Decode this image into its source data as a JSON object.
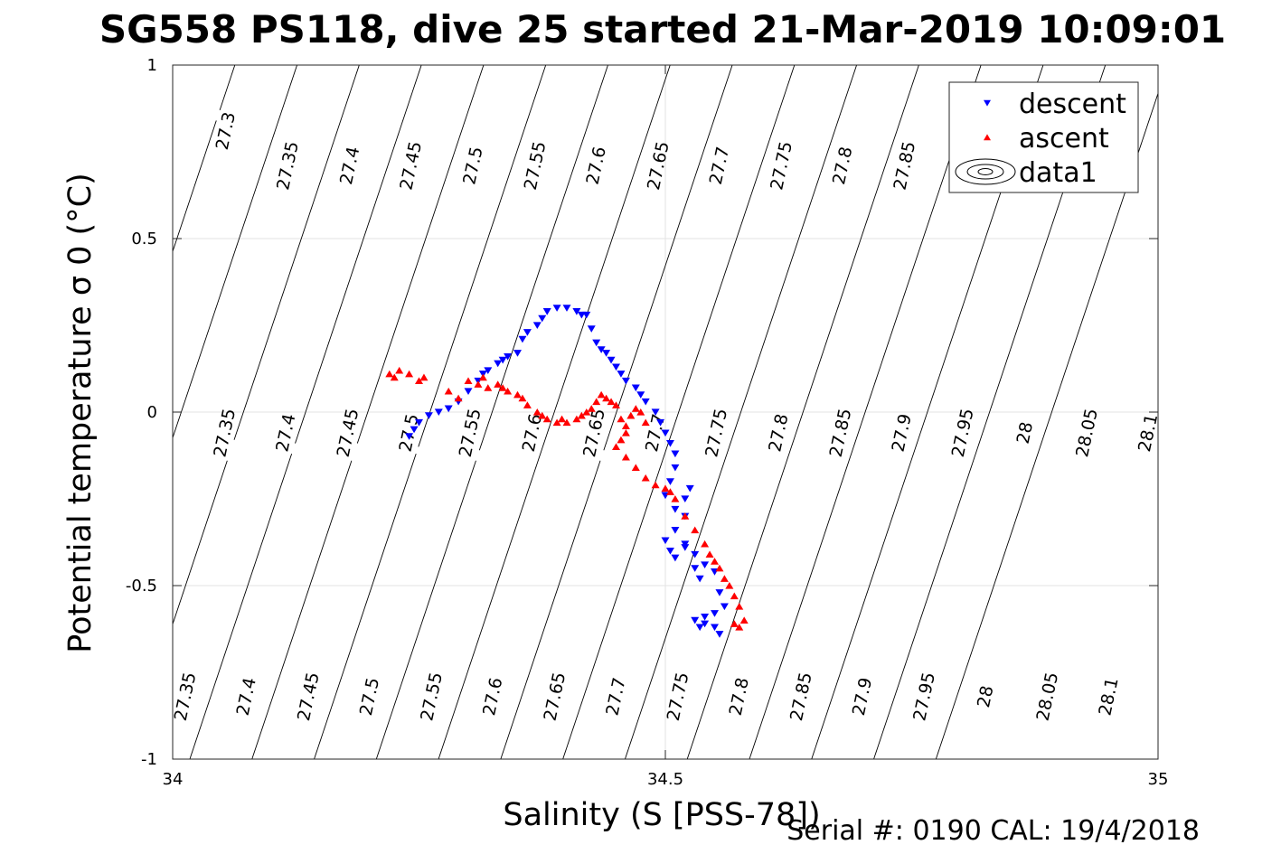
{
  "chart_data": {
    "type": "scatter",
    "title": "SG558 PS118, dive 25 started 21-Mar-2019 10:09:01",
    "xlabel": "Salinity (S [PSS-78])",
    "ylabel": "Potential temperature σ 0 (°C)",
    "footer": "Serial #: 0190  CAL: 19/4/2018",
    "xlim": [
      34,
      35
    ],
    "ylim": [
      -1,
      1
    ],
    "xticks": [
      "34",
      "34.5",
      "35"
    ],
    "yticks": [
      "1",
      "0.5",
      "0",
      "-0.5",
      "-1"
    ],
    "grid": true,
    "legend_position": "top-right",
    "legend": [
      {
        "label": "descent",
        "marker": "triangle-down",
        "color": "#0000ff"
      },
      {
        "label": "ascent",
        "marker": "triangle-up",
        "color": "#ff0000"
      },
      {
        "label": "data1",
        "marker": "contour"
      }
    ],
    "isopycnals": [
      {
        "level": "27.3",
        "x_at_ymax": 34.0
      },
      {
        "level": "27.35",
        "x_at_ymax": 34.0631
      },
      {
        "level": "27.4",
        "x_at_ymax": 34.1262
      },
      {
        "level": "27.45",
        "x_at_ymax": 34.1893
      },
      {
        "level": "27.5",
        "x_at_ymax": 34.2524
      },
      {
        "level": "27.55",
        "x_at_ymax": 34.3155
      },
      {
        "level": "27.6",
        "x_at_ymax": 34.3786
      },
      {
        "level": "27.65",
        "x_at_ymax": 34.4417
      },
      {
        "level": "27.7",
        "x_at_ymax": 34.5048
      },
      {
        "level": "27.75",
        "x_at_ymax": 34.5679
      },
      {
        "level": "27.8",
        "x_at_ymax": 34.631
      },
      {
        "level": "27.85",
        "x_at_ymax": 34.6941
      },
      {
        "level": "27.9",
        "x_at_ymax": 34.7572
      },
      {
        "level": "27.95",
        "x_at_ymax": 34.8203
      },
      {
        "level": "28",
        "x_at_ymax": 34.8834
      },
      {
        "level": "28.05",
        "x_at_ymax": 34.9465
      },
      {
        "level": "28.1",
        "x_at_ymax": 35.0096
      }
    ],
    "contour_labels": [
      {
        "text": "27.3",
        "x": 34.054,
        "y": 0.81
      },
      {
        "text": "27.35",
        "x": 34.117,
        "y": 0.71
      },
      {
        "text": "27.4",
        "x": 34.18,
        "y": 0.71
      },
      {
        "text": "27.45",
        "x": 34.242,
        "y": 0.71
      },
      {
        "text": "27.5",
        "x": 34.305,
        "y": 0.71
      },
      {
        "text": "27.55",
        "x": 34.368,
        "y": 0.71
      },
      {
        "text": "27.6",
        "x": 34.43,
        "y": 0.71
      },
      {
        "text": "27.65",
        "x": 34.493,
        "y": 0.71
      },
      {
        "text": "27.7",
        "x": 34.555,
        "y": 0.71
      },
      {
        "text": "27.75",
        "x": 34.618,
        "y": 0.71
      },
      {
        "text": "27.8",
        "x": 34.68,
        "y": 0.71
      },
      {
        "text": "27.85",
        "x": 34.743,
        "y": 0.71
      },
      {
        "text": "27.35",
        "x": 34.053,
        "y": -0.06
      },
      {
        "text": "27.4",
        "x": 34.115,
        "y": -0.06
      },
      {
        "text": "27.45",
        "x": 34.178,
        "y": -0.06
      },
      {
        "text": "27.5",
        "x": 34.24,
        "y": -0.06
      },
      {
        "text": "27.55",
        "x": 34.302,
        "y": -0.06
      },
      {
        "text": "27.6",
        "x": 34.365,
        "y": -0.06
      },
      {
        "text": "27.65",
        "x": 34.428,
        "y": -0.06
      },
      {
        "text": "27.7",
        "x": 34.49,
        "y": -0.06
      },
      {
        "text": "27.75",
        "x": 34.552,
        "y": -0.06
      },
      {
        "text": "27.8",
        "x": 34.615,
        "y": -0.06
      },
      {
        "text": "27.85",
        "x": 34.678,
        "y": -0.06
      },
      {
        "text": "27.9",
        "x": 34.74,
        "y": -0.06
      },
      {
        "text": "27.95",
        "x": 34.802,
        "y": -0.06
      },
      {
        "text": "28",
        "x": 34.865,
        "y": -0.06
      },
      {
        "text": "28.05",
        "x": 34.928,
        "y": -0.06
      },
      {
        "text": "28.1",
        "x": 34.99,
        "y": -0.06
      },
      {
        "text": "27.35",
        "x": 34.013,
        "y": -0.82
      },
      {
        "text": "27.4",
        "x": 34.075,
        "y": -0.82
      },
      {
        "text": "27.45",
        "x": 34.138,
        "y": -0.82
      },
      {
        "text": "27.5",
        "x": 34.2,
        "y": -0.82
      },
      {
        "text": "27.55",
        "x": 34.263,
        "y": -0.82
      },
      {
        "text": "27.6",
        "x": 34.325,
        "y": -0.82
      },
      {
        "text": "27.65",
        "x": 34.388,
        "y": -0.82
      },
      {
        "text": "27.7",
        "x": 34.45,
        "y": -0.82
      },
      {
        "text": "27.75",
        "x": 34.513,
        "y": -0.82
      },
      {
        "text": "27.8",
        "x": 34.575,
        "y": -0.82
      },
      {
        "text": "27.85",
        "x": 34.638,
        "y": -0.82
      },
      {
        "text": "27.9",
        "x": 34.7,
        "y": -0.82
      },
      {
        "text": "27.95",
        "x": 34.763,
        "y": -0.82
      },
      {
        "text": "28",
        "x": 34.825,
        "y": -0.82
      },
      {
        "text": "28.05",
        "x": 34.888,
        "y": -0.82
      },
      {
        "text": "28.1",
        "x": 34.95,
        "y": -0.82
      }
    ],
    "series": [
      {
        "name": "descent",
        "marker": "triangle-down",
        "color": "#0000ff",
        "x": [
          34.24,
          34.245,
          34.25,
          34.26,
          34.27,
          34.28,
          34.29,
          34.3,
          34.31,
          34.315,
          34.32,
          34.33,
          34.335,
          34.34,
          34.35,
          34.355,
          34.36,
          34.37,
          34.375,
          34.38,
          34.39,
          34.4,
          34.41,
          34.415,
          34.42,
          34.425,
          34.43,
          34.435,
          34.44,
          34.445,
          34.45,
          34.455,
          34.46,
          34.47,
          34.475,
          34.48,
          34.49,
          34.495,
          34.5,
          34.505,
          34.51,
          34.51,
          34.505,
          34.5,
          34.51,
          34.52,
          34.525,
          34.52,
          34.51,
          34.5,
          34.505,
          34.51,
          34.52,
          34.52,
          34.53,
          34.53,
          34.535,
          34.54,
          34.55,
          34.555,
          34.56,
          34.55,
          34.54,
          34.53,
          34.535,
          34.54,
          34.55,
          34.555
        ],
        "y": [
          -0.07,
          -0.05,
          -0.03,
          -0.01,
          0.0,
          0.01,
          0.03,
          0.06,
          0.09,
          0.11,
          0.12,
          0.14,
          0.15,
          0.16,
          0.17,
          0.21,
          0.23,
          0.25,
          0.27,
          0.29,
          0.3,
          0.3,
          0.29,
          0.28,
          0.28,
          0.24,
          0.2,
          0.18,
          0.17,
          0.15,
          0.13,
          0.11,
          0.09,
          0.07,
          0.05,
          0.03,
          0.0,
          -0.03,
          -0.06,
          -0.09,
          -0.12,
          -0.16,
          -0.2,
          -0.24,
          -0.28,
          -0.25,
          -0.22,
          -0.3,
          -0.34,
          -0.37,
          -0.4,
          -0.42,
          -0.39,
          -0.38,
          -0.41,
          -0.45,
          -0.48,
          -0.44,
          -0.46,
          -0.52,
          -0.56,
          -0.58,
          -0.59,
          -0.6,
          -0.62,
          -0.61,
          -0.62,
          -0.64
        ]
      },
      {
        "name": "ascent",
        "marker": "triangle-up",
        "color": "#ff0000",
        "x": [
          34.22,
          34.225,
          34.23,
          34.24,
          34.25,
          34.255,
          34.28,
          34.29,
          34.3,
          34.31,
          34.315,
          34.32,
          34.33,
          34.335,
          34.34,
          34.35,
          34.355,
          34.36,
          34.37,
          34.375,
          34.38,
          34.39,
          34.395,
          34.4,
          34.41,
          34.415,
          34.42,
          34.425,
          34.43,
          34.435,
          34.44,
          34.445,
          34.45,
          34.455,
          34.46,
          34.465,
          34.47,
          34.475,
          34.48,
          34.46,
          34.455,
          34.45,
          34.46,
          34.47,
          34.48,
          34.49,
          34.5,
          34.505,
          34.51,
          34.52,
          34.53,
          34.54,
          34.545,
          34.55,
          34.555,
          34.56,
          34.565,
          34.57,
          34.575,
          34.58,
          34.575,
          34.57
        ],
        "y": [
          0.11,
          0.1,
          0.12,
          0.11,
          0.09,
          0.1,
          0.06,
          0.04,
          0.09,
          0.08,
          0.1,
          0.07,
          0.08,
          0.07,
          0.06,
          0.05,
          0.04,
          0.02,
          0.0,
          -0.01,
          -0.02,
          -0.03,
          -0.02,
          -0.03,
          -0.02,
          -0.01,
          0.0,
          0.01,
          0.03,
          0.05,
          0.04,
          0.03,
          0.02,
          -0.02,
          -0.04,
          -0.01,
          0.01,
          0.0,
          -0.03,
          -0.06,
          -0.08,
          -0.1,
          -0.13,
          -0.16,
          -0.19,
          -0.21,
          -0.22,
          -0.23,
          -0.25,
          -0.3,
          -0.34,
          -0.38,
          -0.41,
          -0.43,
          -0.45,
          -0.48,
          -0.5,
          -0.53,
          -0.56,
          -0.6,
          -0.62,
          -0.61
        ]
      }
    ]
  }
}
